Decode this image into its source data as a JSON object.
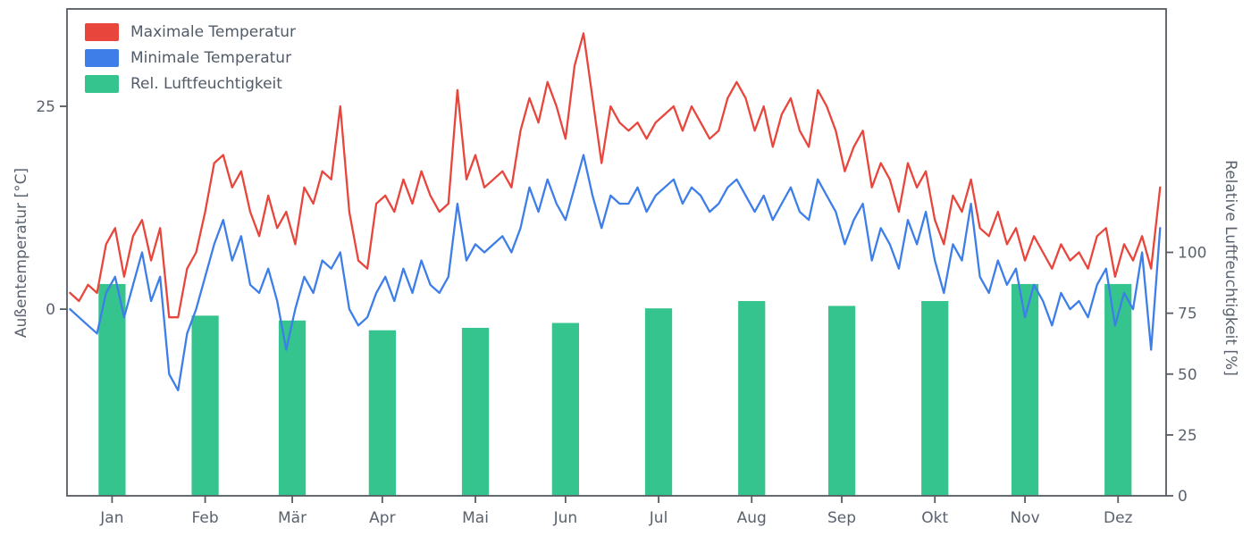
{
  "chart_data": {
    "type": "line+bar",
    "title": "",
    "colors": {
      "max_temp": "#e8453c",
      "min_temp": "#3d7ee8",
      "humidity": "#35c48d",
      "axis": "#565b63",
      "text": "#5a626e"
    },
    "left_axis": {
      "label": "Außentemperatur [°C]",
      "ticks": [
        0,
        25
      ],
      "ylim": [
        -23,
        37
      ]
    },
    "right_axis": {
      "label": "Relative Luftfeuchtigkeit [%]",
      "ticks": [
        0,
        25,
        50,
        75,
        100
      ],
      "ylim": [
        0,
        200
      ]
    },
    "x_axis": {
      "tick_labels": [
        "Jan",
        "Feb",
        "Mär",
        "Apr",
        "Mai",
        "Jun",
        "Jul",
        "Aug",
        "Sep",
        "Okt",
        "Nov",
        "Dez"
      ],
      "tick_days": [
        15,
        46,
        75,
        105,
        136,
        166,
        197,
        228,
        258,
        289,
        319,
        350
      ],
      "xlim_days": [
        0,
        366
      ]
    },
    "legend": [
      {
        "label": "Maximale Temperatur",
        "color": "#e8453c"
      },
      {
        "label": "Minimale Temperatur",
        "color": "#3d7ee8"
      },
      {
        "label": "Rel. Luftfeuchtigkeit",
        "color": "#35c48d"
      }
    ],
    "series": [
      {
        "name": "Maximale Temperatur",
        "type": "line",
        "axis": "left",
        "color": "#e8453c",
        "x_start_day": 1,
        "x_step_days": 3,
        "values": [
          2,
          1,
          3,
          2,
          8,
          10,
          4,
          9,
          11,
          6,
          10,
          -1,
          -1,
          5,
          7,
          12,
          18,
          19,
          15,
          17,
          12,
          9,
          14,
          10,
          12,
          8,
          15,
          13,
          17,
          16,
          25,
          12,
          6,
          5,
          13,
          14,
          12,
          16,
          13,
          17,
          14,
          12,
          13,
          27,
          16,
          19,
          15,
          16,
          17,
          15,
          22,
          26,
          23,
          28,
          25,
          21,
          30,
          34,
          26,
          18,
          25,
          23,
          22,
          23,
          21,
          23,
          24,
          25,
          22,
          25,
          23,
          21,
          22,
          26,
          28,
          26,
          22,
          25,
          20,
          24,
          26,
          22,
          20,
          27,
          25,
          22,
          17,
          20,
          22,
          15,
          18,
          16,
          12,
          18,
          15,
          17,
          11,
          8,
          14,
          12,
          16,
          10,
          9,
          12,
          8,
          10,
          6,
          9,
          7,
          5,
          8,
          6,
          7,
          5,
          9,
          10,
          4,
          8,
          6,
          9,
          5,
          15
        ]
      },
      {
        "name": "Minimale Temperatur",
        "type": "line",
        "axis": "left",
        "color": "#3d7ee8",
        "x_start_day": 1,
        "x_step_days": 3,
        "values": [
          0,
          -1,
          -2,
          -3,
          2,
          4,
          -1,
          3,
          7,
          1,
          4,
          -8,
          -10,
          -3,
          0,
          4,
          8,
          11,
          6,
          9,
          3,
          2,
          5,
          1,
          -5,
          0,
          4,
          2,
          6,
          5,
          7,
          0,
          -2,
          -1,
          2,
          4,
          1,
          5,
          2,
          6,
          3,
          2,
          4,
          13,
          6,
          8,
          7,
          8,
          9,
          7,
          10,
          15,
          12,
          16,
          13,
          11,
          15,
          19,
          14,
          10,
          14,
          13,
          13,
          15,
          12,
          14,
          15,
          16,
          13,
          15,
          14,
          12,
          13,
          15,
          16,
          14,
          12,
          14,
          11,
          13,
          15,
          12,
          11,
          16,
          14,
          12,
          8,
          11,
          13,
          6,
          10,
          8,
          5,
          11,
          8,
          12,
          6,
          2,
          8,
          6,
          13,
          4,
          2,
          6,
          3,
          5,
          -1,
          3,
          1,
          -2,
          2,
          0,
          1,
          -1,
          3,
          5,
          -2,
          2,
          0,
          7,
          -5,
          10
        ]
      },
      {
        "name": "Rel. Luftfeuchtigkeit",
        "type": "bar",
        "axis": "right",
        "color": "#35c48d",
        "bar_x_days": [
          15,
          46,
          75,
          105,
          136,
          166,
          197,
          228,
          258,
          289,
          319,
          350
        ],
        "bar_width_days": 9,
        "categories": [
          "Jan",
          "Feb",
          "Mär",
          "Apr",
          "Mai",
          "Jun",
          "Jul",
          "Aug",
          "Sep",
          "Okt",
          "Nov",
          "Dez"
        ],
        "values": [
          87,
          74,
          72,
          68,
          69,
          71,
          77,
          80,
          78,
          80,
          87,
          87
        ]
      }
    ]
  }
}
